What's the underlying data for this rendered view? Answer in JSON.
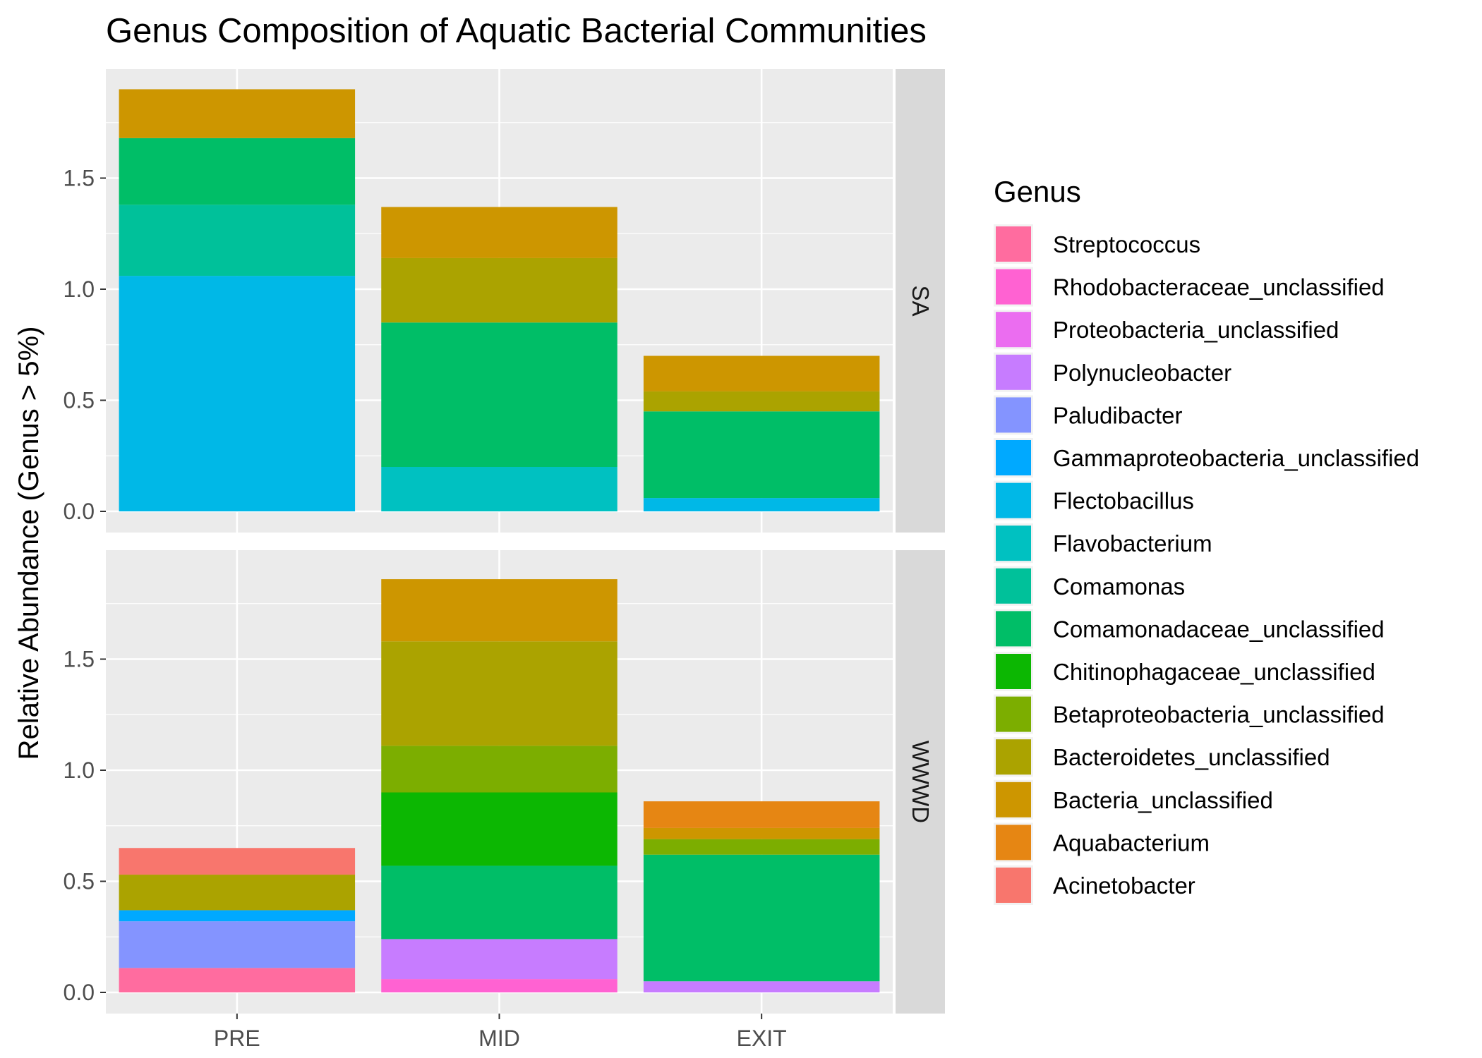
{
  "chart_data": {
    "type": "bar",
    "stacked": true,
    "title": "Genus Composition of Aquatic Bacterial Communities",
    "xlabel": "",
    "ylabel": "Relative Abundance (Genus > 5%)",
    "categories": [
      "PRE",
      "MID",
      "EXIT"
    ],
    "ylim": [
      0,
      1.9
    ],
    "yticks": [
      0.0,
      0.5,
      1.0,
      1.5
    ],
    "ytick_labels": [
      "0.0",
      "0.5",
      "1.0",
      "1.5"
    ],
    "grid": true,
    "legend": {
      "title": "Genus",
      "position": "right",
      "entries": [
        {
          "name": "Streptococcus",
          "color": "#FF6C9F"
        },
        {
          "name": "Rhodobacteraceae_unclassified",
          "color": "#FF62D2"
        },
        {
          "name": "Proteobacteria_unclassified",
          "color": "#EB6DF0"
        },
        {
          "name": "Polynucleobacter",
          "color": "#C77CFF"
        },
        {
          "name": "Paludibacter",
          "color": "#8494FF"
        },
        {
          "name": "Gammaproteobacteria_unclassified",
          "color": "#00A9FF"
        },
        {
          "name": "Flectobacillus",
          "color": "#00B8E7"
        },
        {
          "name": "Flavobacterium",
          "color": "#00C1C1"
        },
        {
          "name": "Comamonas",
          "color": "#00C19A"
        },
        {
          "name": "Comamonadaceae_unclassified",
          "color": "#00BE67"
        },
        {
          "name": "Chitinophagaceae_unclassified",
          "color": "#0CB702"
        },
        {
          "name": "Betaproteobacteria_unclassified",
          "color": "#7CAE00"
        },
        {
          "name": "Bacteroidetes_unclassified",
          "color": "#ABA300"
        },
        {
          "name": "Bacteria_unclassified",
          "color": "#CD9600"
        },
        {
          "name": "Aquabacterium",
          "color": "#E68613"
        },
        {
          "name": "Acinetobacter",
          "color": "#F8766D"
        }
      ]
    },
    "facets": [
      {
        "label": "SA",
        "bars": [
          {
            "category": "PRE",
            "segments": [
              {
                "genus": "Flectobacillus",
                "value": 1.06
              },
              {
                "genus": "Comamonas",
                "value": 0.32
              },
              {
                "genus": "Comamonadaceae_unclassified",
                "value": 0.3
              },
              {
                "genus": "Bacteria_unclassified",
                "value": 0.22
              }
            ]
          },
          {
            "category": "MID",
            "segments": [
              {
                "genus": "Flavobacterium",
                "value": 0.2
              },
              {
                "genus": "Comamonadaceae_unclassified",
                "value": 0.65
              },
              {
                "genus": "Bacteroidetes_unclassified",
                "value": 0.29
              },
              {
                "genus": "Bacteria_unclassified",
                "value": 0.23
              }
            ]
          },
          {
            "category": "EXIT",
            "segments": [
              {
                "genus": "Flectobacillus",
                "value": 0.06
              },
              {
                "genus": "Comamonadaceae_unclassified",
                "value": 0.39
              },
              {
                "genus": "Bacteroidetes_unclassified",
                "value": 0.09
              },
              {
                "genus": "Bacteria_unclassified",
                "value": 0.16
              }
            ]
          }
        ]
      },
      {
        "label": "WWWD",
        "bars": [
          {
            "category": "PRE",
            "segments": [
              {
                "genus": "Streptococcus",
                "value": 0.11
              },
              {
                "genus": "Paludibacter",
                "value": 0.21
              },
              {
                "genus": "Gammaproteobacteria_unclassified",
                "value": 0.05
              },
              {
                "genus": "Bacteroidetes_unclassified",
                "value": 0.16
              },
              {
                "genus": "Acinetobacter",
                "value": 0.12
              }
            ]
          },
          {
            "category": "MID",
            "segments": [
              {
                "genus": "Rhodobacteraceae_unclassified",
                "value": 0.06
              },
              {
                "genus": "Polynucleobacter",
                "value": 0.18
              },
              {
                "genus": "Comamonadaceae_unclassified",
                "value": 0.33
              },
              {
                "genus": "Chitinophagaceae_unclassified",
                "value": 0.33
              },
              {
                "genus": "Betaproteobacteria_unclassified",
                "value": 0.21
              },
              {
                "genus": "Bacteroidetes_unclassified",
                "value": 0.47
              },
              {
                "genus": "Bacteria_unclassified",
                "value": 0.28
              }
            ]
          },
          {
            "category": "EXIT",
            "segments": [
              {
                "genus": "Polynucleobacter",
                "value": 0.05
              },
              {
                "genus": "Comamonadaceae_unclassified",
                "value": 0.57
              },
              {
                "genus": "Betaproteobacteria_unclassified",
                "value": 0.07
              },
              {
                "genus": "Bacteria_unclassified",
                "value": 0.05
              },
              {
                "genus": "Aquabacterium",
                "value": 0.12
              }
            ]
          }
        ]
      }
    ]
  }
}
